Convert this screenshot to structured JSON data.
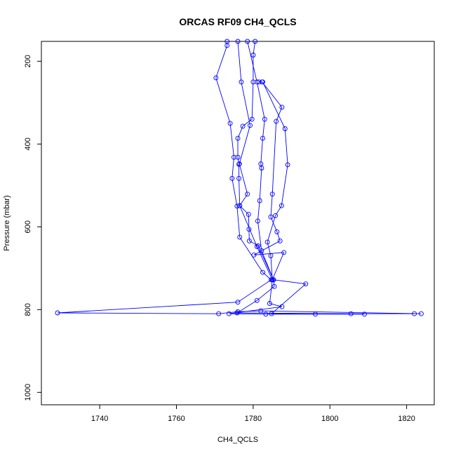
{
  "chart_data": {
    "type": "line",
    "title": "ORCAS RF09 CH4_QCLS",
    "xlabel": "CH4_QCLS",
    "ylabel": "Pressure (mbar)",
    "xlim": [
      1724.8,
      1827.2
    ],
    "ylim": [
      1030,
      152
    ],
    "y_axis_inverted": true,
    "xticks": [
      1740,
      1760,
      1780,
      1800,
      1820
    ],
    "yticks": [
      200,
      400,
      600,
      800,
      1000
    ],
    "grid": false,
    "marker": "open-circle",
    "color": "#0000ff",
    "series": [
      {
        "points": [
          [
            1773.2,
            152
          ],
          [
            1773.2,
            162
          ],
          [
            1770.3,
            240
          ],
          [
            1774.0,
            350
          ],
          [
            1775.0,
            432
          ],
          [
            1774.5,
            483
          ],
          [
            1775.8,
            550
          ],
          [
            1776.5,
            625
          ],
          [
            1782.5,
            710
          ],
          [
            1784.7,
            728
          ],
          [
            1776.0,
            782
          ],
          [
            1729.0,
            808
          ],
          [
            1771.0,
            810
          ],
          [
            1776.0,
            805
          ],
          [
            1782.0,
            803
          ],
          [
            1823.8,
            810
          ]
        ]
      },
      {
        "points": [
          [
            1780.5,
            152
          ],
          [
            1780.0,
            185
          ],
          [
            1780.0,
            250
          ],
          [
            1779.7,
            340
          ],
          [
            1777.3,
            357
          ],
          [
            1776.0,
            386
          ],
          [
            1776.0,
            432
          ],
          [
            1776.3,
            449
          ],
          [
            1776.3,
            483
          ],
          [
            1776.5,
            549
          ],
          [
            1778.8,
            570
          ],
          [
            1778.9,
            606
          ],
          [
            1779.0,
            634
          ],
          [
            1781.3,
            646
          ],
          [
            1785.3,
            728
          ],
          [
            1785.5,
            744
          ],
          [
            1781.0,
            778
          ],
          [
            1775.8,
            808
          ],
          [
            1805.5,
            810
          ],
          [
            1822.0,
            810
          ]
        ]
      },
      {
        "points": [
          [
            1776.0,
            152
          ],
          [
            1776.9,
            250
          ],
          [
            1779.2,
            355
          ],
          [
            1776.4,
            448
          ],
          [
            1778.5,
            521
          ],
          [
            1776.5,
            549
          ],
          [
            1781.0,
            648
          ],
          [
            1785.0,
            728
          ],
          [
            1784.3,
            785
          ],
          [
            1787.5,
            793
          ],
          [
            1773.7,
            810
          ],
          [
            1783.3,
            811
          ],
          [
            1809.0,
            811
          ]
        ]
      },
      {
        "points": [
          [
            1778.5,
            152
          ],
          [
            1781.0,
            250
          ],
          [
            1783.0,
            340
          ],
          [
            1782.5,
            386
          ],
          [
            1782.0,
            448
          ],
          [
            1782.2,
            458
          ],
          [
            1781.7,
            537
          ],
          [
            1781.2,
            586
          ],
          [
            1782.2,
            658
          ],
          [
            1785.3,
            728
          ],
          [
            1793.7,
            738
          ],
          [
            1784.8,
            810
          ],
          [
            1796.2,
            811
          ]
        ]
      },
      {
        "points": [
          [
            1781.5,
            250
          ],
          [
            1782.3,
            250
          ],
          [
            1787.5,
            311
          ],
          [
            1786.0,
            345
          ],
          [
            1785.0,
            521
          ],
          [
            1784.6,
            576
          ],
          [
            1786.2,
            612
          ],
          [
            1787.0,
            634
          ],
          [
            1780.2,
            668
          ],
          [
            1788.0,
            662
          ],
          [
            1785.0,
            728
          ]
        ]
      },
      {
        "points": [
          [
            1782.5,
            250
          ],
          [
            1788.3,
            363
          ],
          [
            1789.0,
            450
          ],
          [
            1787.4,
            549
          ],
          [
            1785.8,
            573
          ],
          [
            1783.7,
            637
          ],
          [
            1784.6,
            670
          ],
          [
            1785.0,
            728
          ]
        ]
      }
    ]
  }
}
